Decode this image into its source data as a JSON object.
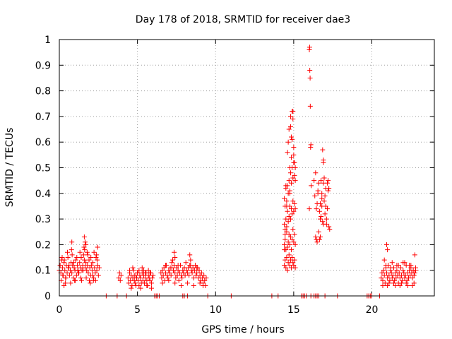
{
  "chart_data": {
    "type": "scatter",
    "title": "Day 178 of 2018, SRMTID for receiver dae3",
    "xlabel": "GPS time / hours",
    "ylabel": "SRMTID / TECUs",
    "xlim": [
      0,
      24
    ],
    "ylim": [
      0,
      1
    ],
    "grid": true,
    "marker": "+",
    "color": "#ff0000",
    "x_ticks": [
      0,
      5,
      10,
      15,
      20
    ],
    "x_tick_labels": [
      "0",
      "5",
      "10",
      "15",
      "20"
    ],
    "y_ticks": [
      0,
      0.1,
      0.2,
      0.3,
      0.4,
      0.5,
      0.6,
      0.7,
      0.8,
      0.9,
      1
    ],
    "y_tick_labels": [
      "0",
      "0.1",
      "0.2",
      "0.3",
      "0.4",
      "0.5",
      "0.6",
      "0.7",
      "0.8",
      "0.9",
      "1"
    ],
    "series": [
      {
        "name": "SRMTID",
        "x": [
          0.0,
          0.05,
          0.1,
          0.15,
          0.2,
          0.25,
          0.3,
          0.35,
          0.4,
          0.45,
          0.5,
          0.55,
          0.6,
          0.65,
          0.7,
          0.75,
          0.8,
          0.85,
          0.9,
          0.95,
          1.0,
          1.05,
          1.1,
          1.15,
          1.2,
          1.25,
          1.3,
          1.35,
          1.4,
          1.45,
          1.5,
          1.55,
          1.6,
          1.65,
          1.7,
          1.75,
          1.8,
          1.85,
          1.9,
          1.95,
          2.0,
          2.05,
          2.1,
          2.15,
          2.2,
          2.25,
          2.3,
          2.35,
          2.4,
          2.45,
          2.5,
          2.55,
          0.12,
          0.22,
          0.32,
          0.42,
          0.52,
          0.62,
          0.72,
          0.82,
          0.92,
          1.02,
          1.12,
          1.22,
          1.32,
          1.42,
          1.52,
          1.62,
          1.72,
          1.82,
          1.92,
          2.02,
          2.12,
          2.22,
          2.32,
          2.42,
          0.18,
          0.38,
          0.58,
          0.78,
          0.98,
          1.18,
          1.38,
          1.58,
          1.78,
          1.98,
          2.18,
          2.38,
          0.3,
          0.8,
          1.6,
          1.65,
          1.7,
          2.45,
          3.8,
          3.85,
          3.9,
          3.95,
          4.4,
          4.45,
          4.5,
          4.55,
          4.6,
          4.65,
          4.7,
          4.75,
          4.8,
          4.85,
          4.9,
          4.95,
          5.0,
          5.05,
          5.1,
          5.15,
          5.2,
          5.25,
          5.3,
          5.35,
          5.4,
          5.45,
          5.5,
          5.55,
          5.6,
          5.65,
          5.7,
          5.75,
          5.8,
          5.85,
          5.9,
          5.95,
          6.0,
          4.5,
          4.7,
          4.9,
          5.1,
          5.3,
          5.5,
          5.7,
          5.9,
          4.6,
          4.8,
          5.0,
          5.2,
          5.4,
          5.6,
          5.8,
          6.5,
          6.55,
          6.6,
          6.65,
          6.7,
          6.75,
          6.8,
          6.85,
          6.9,
          6.95,
          7.0,
          7.05,
          7.1,
          7.15,
          7.2,
          7.25,
          7.3,
          7.35,
          7.4,
          7.45,
          7.5,
          7.55,
          7.6,
          7.65,
          7.7,
          7.75,
          7.8,
          7.85,
          7.9,
          7.95,
          8.0,
          8.05,
          8.1,
          8.15,
          8.2,
          8.25,
          8.3,
          8.35,
          8.4,
          8.45,
          8.5,
          8.55,
          8.6,
          8.65,
          8.7,
          8.75,
          8.8,
          8.85,
          8.9,
          8.95,
          9.0,
          9.05,
          9.1,
          9.15,
          9.2,
          9.25,
          9.3,
          9.35,
          9.4,
          6.6,
          6.8,
          7.0,
          7.2,
          7.4,
          7.6,
          7.8,
          8.0,
          8.2,
          8.4,
          8.6,
          8.8,
          9.0,
          9.2,
          7.35,
          7.4,
          8.35,
          14.4,
          14.45,
          14.5,
          14.55,
          14.6,
          14.65,
          14.7,
          14.75,
          14.8,
          14.85,
          14.9,
          14.95,
          15.0,
          15.05,
          15.1,
          14.4,
          14.45,
          14.5,
          14.55,
          14.6,
          14.65,
          14.7,
          14.75,
          14.8,
          14.85,
          14.9,
          14.95,
          15.0,
          15.05,
          15.1,
          14.4,
          14.45,
          14.5,
          14.55,
          14.6,
          14.65,
          14.7,
          14.75,
          14.8,
          14.85,
          14.9,
          14.95,
          15.0,
          15.05,
          15.1,
          14.4,
          14.45,
          14.5,
          14.55,
          14.6,
          14.65,
          14.7,
          14.75,
          14.8,
          14.85,
          14.9,
          14.95,
          15.0,
          15.05,
          15.1,
          14.4,
          14.45,
          14.5,
          14.55,
          14.6,
          14.65,
          14.7,
          14.75,
          14.8,
          14.85,
          14.9,
          14.95,
          15.0,
          15.05,
          15.1,
          14.8,
          14.9,
          14.95,
          15.0,
          14.85,
          14.75,
          16.0,
          16.02,
          16.03,
          16.05,
          16.06,
          16.08,
          16.1,
          16.0,
          16.12,
          16.3,
          16.35,
          16.4,
          16.45,
          16.5,
          16.55,
          16.6,
          16.65,
          16.7,
          16.75,
          16.8,
          16.85,
          16.9,
          16.95,
          17.0,
          17.05,
          17.1,
          17.15,
          17.2,
          17.25,
          17.3,
          16.4,
          16.5,
          16.6,
          16.7,
          16.8,
          16.9,
          17.0,
          17.1,
          17.2,
          16.45,
          16.55,
          16.65,
          16.75,
          16.85,
          16.95,
          17.05,
          17.15,
          17.25,
          16.7,
          16.8,
          16.9,
          16.9,
          20.6,
          20.65,
          20.7,
          20.75,
          20.8,
          20.85,
          20.9,
          20.95,
          21.0,
          21.05,
          21.1,
          21.15,
          21.2,
          21.25,
          21.3,
          21.35,
          21.4,
          21.45,
          21.5,
          21.55,
          21.6,
          21.65,
          21.7,
          21.75,
          21.8,
          21.85,
          21.9,
          21.95,
          22.0,
          22.05,
          22.1,
          22.15,
          22.2,
          22.25,
          22.3,
          22.35,
          22.4,
          22.45,
          22.5,
          22.55,
          22.6,
          22.65,
          22.7,
          22.75,
          22.8,
          20.7,
          20.9,
          21.1,
          21.3,
          21.5,
          21.7,
          21.9,
          22.1,
          22.3,
          22.5,
          22.7,
          20.8,
          21.0,
          21.2,
          21.4,
          21.6,
          21.8,
          22.0,
          22.2,
          22.4,
          22.6,
          22.8,
          20.95,
          21.0,
          22.75,
          3.0,
          3.7,
          4.3,
          6.1,
          6.2,
          6.3,
          6.4,
          7.9,
          8.0,
          8.2,
          9.5,
          11.0,
          13.6,
          14.0,
          15.5,
          15.6,
          15.7,
          15.8,
          16.1,
          16.3,
          16.4,
          16.5,
          16.6,
          17.0,
          17.8,
          19.7,
          19.8,
          19.9,
          20.0,
          20.5
        ],
        "y": [
          0.1,
          0.12,
          0.09,
          0.14,
          0.11,
          0.08,
          0.13,
          0.1,
          0.07,
          0.12,
          0.09,
          0.15,
          0.11,
          0.08,
          0.1,
          0.13,
          0.09,
          0.12,
          0.07,
          0.11,
          0.1,
          0.14,
          0.08,
          0.12,
          0.1,
          0.09,
          0.13,
          0.11,
          0.15,
          0.1,
          0.12,
          0.16,
          0.14,
          0.11,
          0.13,
          0.1,
          0.12,
          0.09,
          0.14,
          0.11,
          0.08,
          0.12,
          0.1,
          0.13,
          0.07,
          0.11,
          0.09,
          0.15,
          0.1,
          0.12,
          0.08,
          0.11,
          0.06,
          0.08,
          0.14,
          0.07,
          0.17,
          0.12,
          0.05,
          0.16,
          0.13,
          0.06,
          0.15,
          0.09,
          0.17,
          0.06,
          0.1,
          0.18,
          0.07,
          0.16,
          0.06,
          0.15,
          0.08,
          0.17,
          0.06,
          0.14,
          0.15,
          0.05,
          0.11,
          0.18,
          0.06,
          0.1,
          0.07,
          0.19,
          0.17,
          0.05,
          0.06,
          0.16,
          0.04,
          0.21,
          0.23,
          0.21,
          0.2,
          0.19,
          0.07,
          0.09,
          0.06,
          0.08,
          0.07,
          0.05,
          0.09,
          0.06,
          0.08,
          0.04,
          0.07,
          0.1,
          0.06,
          0.05,
          0.08,
          0.07,
          0.09,
          0.06,
          0.04,
          0.08,
          0.07,
          0.05,
          0.09,
          0.06,
          0.08,
          0.05,
          0.07,
          0.09,
          0.06,
          0.04,
          0.08,
          0.07,
          0.06,
          0.09,
          0.05,
          0.07,
          0.08,
          0.1,
          0.11,
          0.04,
          0.1,
          0.11,
          0.09,
          0.1,
          0.03,
          0.03,
          0.08,
          0.09,
          0.03,
          0.1,
          0.04,
          0.09,
          0.09,
          0.07,
          0.1,
          0.08,
          0.11,
          0.06,
          0.09,
          0.12,
          0.08,
          0.07,
          0.1,
          0.09,
          0.11,
          0.08,
          0.13,
          0.14,
          0.1,
          0.12,
          0.09,
          0.07,
          0.11,
          0.08,
          0.1,
          0.06,
          0.09,
          0.12,
          0.08,
          0.07,
          0.1,
          0.09,
          0.11,
          0.08,
          0.13,
          0.1,
          0.09,
          0.11,
          0.08,
          0.12,
          0.14,
          0.1,
          0.09,
          0.11,
          0.07,
          0.1,
          0.12,
          0.08,
          0.09,
          0.11,
          0.07,
          0.1,
          0.08,
          0.06,
          0.09,
          0.07,
          0.05,
          0.08,
          0.06,
          0.04,
          0.07,
          0.05,
          0.12,
          0.06,
          0.11,
          0.05,
          0.12,
          0.04,
          0.11,
          0.05,
          0.12,
          0.04,
          0.11,
          0.05,
          0.04,
          0.17,
          0.15,
          0.16,
          0.12,
          0.14,
          0.11,
          0.15,
          0.1,
          0.13,
          0.16,
          0.12,
          0.14,
          0.11,
          0.15,
          0.13,
          0.12,
          0.14,
          0.11,
          0.2,
          0.22,
          0.18,
          0.25,
          0.19,
          0.21,
          0.24,
          0.2,
          0.23,
          0.18,
          0.22,
          0.26,
          0.21,
          0.24,
          0.2,
          0.28,
          0.26,
          0.3,
          0.27,
          0.33,
          0.29,
          0.31,
          0.35,
          0.3,
          0.34,
          0.32,
          0.37,
          0.33,
          0.36,
          0.34,
          0.38,
          0.35,
          0.42,
          0.37,
          0.43,
          0.4,
          0.45,
          0.41,
          0.48,
          0.44,
          0.5,
          0.46,
          0.52,
          0.47,
          0.5,
          0.18,
          0.24,
          0.43,
          0.35,
          0.56,
          0.6,
          0.65,
          0.5,
          0.7,
          0.62,
          0.72,
          0.69,
          0.55,
          0.52,
          0.45,
          0.66,
          0.61,
          0.72,
          0.58,
          0.54,
          0.4,
          0.96,
          0.97,
          0.88,
          0.85,
          0.74,
          0.58,
          0.59,
          0.34,
          0.43,
          0.45,
          0.39,
          0.23,
          0.22,
          0.21,
          0.41,
          0.44,
          0.33,
          0.36,
          0.31,
          0.4,
          0.57,
          0.52,
          0.46,
          0.39,
          0.35,
          0.3,
          0.44,
          0.45,
          0.42,
          0.26,
          0.48,
          0.36,
          0.25,
          0.3,
          0.38,
          0.44,
          0.32,
          0.28,
          0.41,
          0.34,
          0.4,
          0.22,
          0.45,
          0.29,
          0.37,
          0.42,
          0.34,
          0.27,
          0.23,
          0.35,
          0.53,
          0.28,
          0.07,
          0.09,
          0.06,
          0.1,
          0.08,
          0.05,
          0.11,
          0.09,
          0.07,
          0.12,
          0.08,
          0.06,
          0.1,
          0.09,
          0.07,
          0.08,
          0.11,
          0.06,
          0.09,
          0.07,
          0.1,
          0.08,
          0.05,
          0.09,
          0.07,
          0.11,
          0.08,
          0.06,
          0.1,
          0.09,
          0.07,
          0.08,
          0.12,
          0.06,
          0.09,
          0.07,
          0.1,
          0.08,
          0.11,
          0.09,
          0.07,
          0.1,
          0.08,
          0.09,
          0.11,
          0.04,
          0.12,
          0.05,
          0.13,
          0.04,
          0.12,
          0.05,
          0.13,
          0.04,
          0.12,
          0.05,
          0.14,
          0.04,
          0.11,
          0.05,
          0.12,
          0.04,
          0.13,
          0.05,
          0.12,
          0.04,
          0.1,
          0.2,
          0.18,
          0.16,
          0,
          0,
          0,
          0,
          0,
          0,
          0,
          0,
          0,
          0,
          0,
          0,
          0,
          0,
          0,
          0,
          0,
          0,
          0,
          0,
          0,
          0,
          0,
          0,
          0,
          0,
          0,
          0,
          0,
          0
        ]
      }
    ]
  }
}
